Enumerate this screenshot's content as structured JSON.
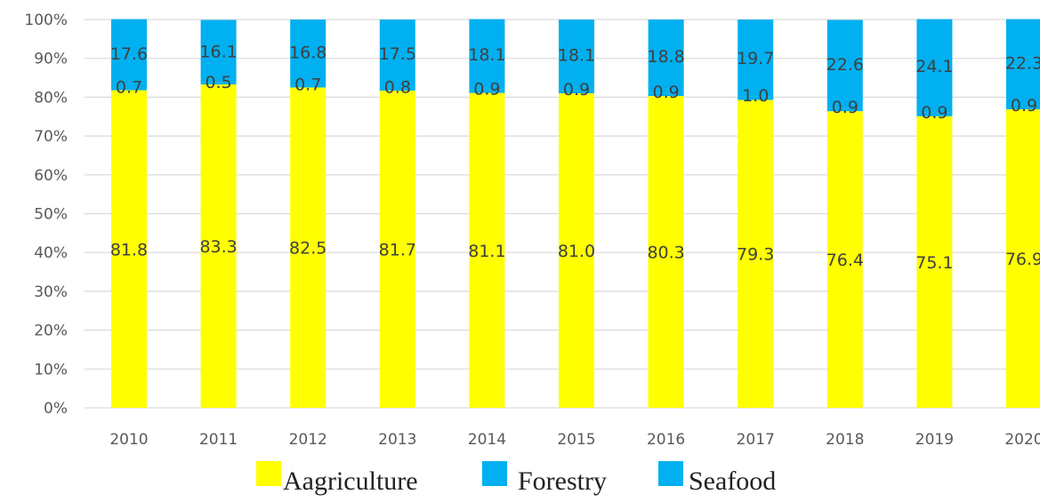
{
  "chart_data": {
    "type": "bar",
    "stacked": true,
    "categories": [
      "2010",
      "2011",
      "2012",
      "2013",
      "2014",
      "2015",
      "2016",
      "2017",
      "2018",
      "2019",
      "2020"
    ],
    "series": [
      {
        "name": "Aagriculture",
        "color": "#ffff00",
        "values": [
          81.8,
          83.3,
          82.5,
          81.7,
          81.1,
          81.0,
          80.3,
          79.3,
          76.4,
          75.1,
          76.9
        ]
      },
      {
        "name": "Forestry",
        "color": "#00b0f0",
        "values": [
          0.7,
          0.5,
          0.7,
          0.8,
          0.9,
          0.9,
          0.9,
          1.0,
          0.9,
          0.9,
          0.9
        ]
      },
      {
        "name": "Seafood",
        "color": "#00b0f0",
        "values": [
          17.6,
          16.1,
          16.8,
          17.5,
          18.1,
          18.1,
          18.8,
          19.7,
          22.6,
          24.1,
          22.3
        ]
      }
    ],
    "data_labels": {
      "Aagriculture": [
        "81.8",
        "83.3",
        "82.5",
        "81.7",
        "81.1",
        "81.0",
        "80.3",
        "79.3",
        "76.4",
        "75.1",
        "76.9"
      ],
      "Forestry": [
        "0.7",
        "0.5",
        "0.7",
        "0.8",
        "0.9",
        "0.9",
        "0.9",
        "1.0",
        "0.9",
        "0.9",
        "0.9"
      ],
      "Seafood": [
        "17.6",
        "16.1",
        "16.8",
        "17.5",
        "18.1",
        "18.1",
        "18.8",
        "19.7",
        "22.6",
        "24.1",
        "22.3"
      ]
    },
    "y_ticks": [
      "0%",
      "10%",
      "20%",
      "30%",
      "40%",
      "50%",
      "60%",
      "70%",
      "80%",
      "90%",
      "100%"
    ],
    "ylim": [
      0,
      100
    ],
    "grid": true,
    "legend_position": "bottom",
    "title": "",
    "xlabel": "",
    "ylabel": ""
  }
}
